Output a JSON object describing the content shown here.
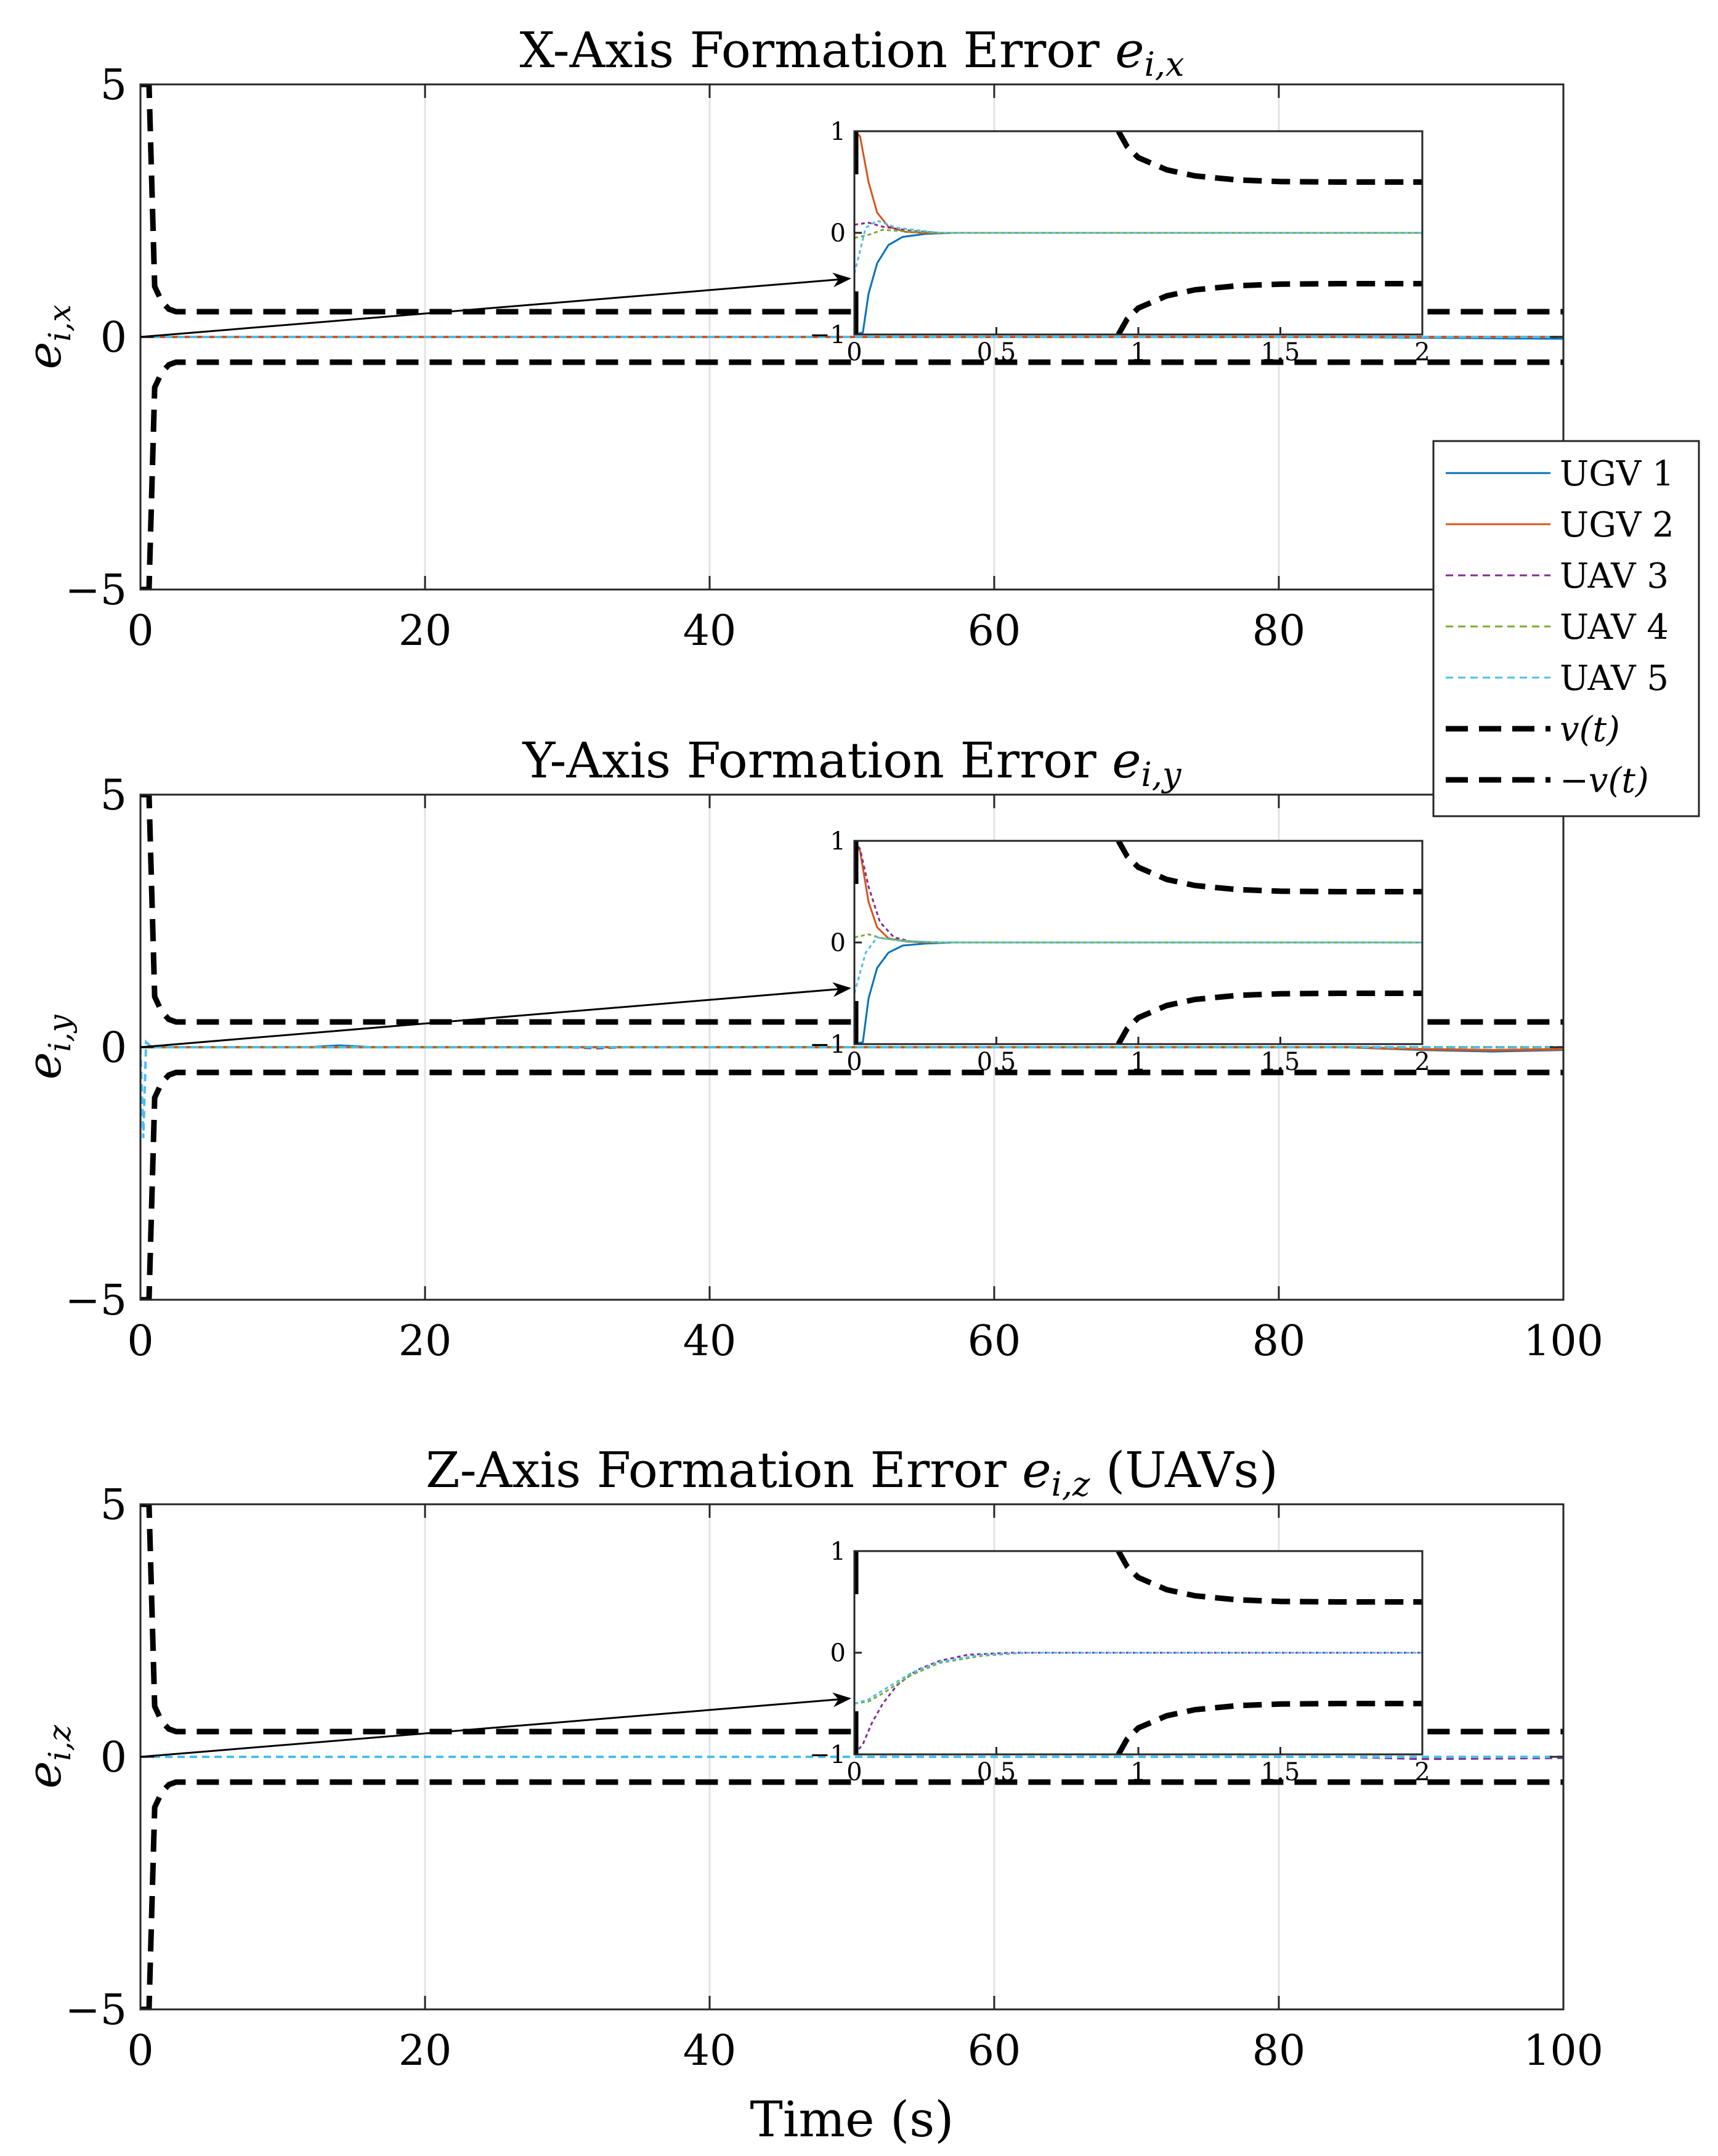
{
  "legend": {
    "entries": [
      {
        "label": "UGV 1",
        "color": "#0072BD",
        "dash": "solid"
      },
      {
        "label": "UGV 2",
        "color": "#D95319",
        "dash": "solid"
      },
      {
        "label": "UAV 3",
        "color": "#7E2F8E",
        "dash": "dotted"
      },
      {
        "label": "UAV 4",
        "color": "#77AC30",
        "dash": "dotted"
      },
      {
        "label": "UAV 5",
        "color": "#4DBEEE",
        "dash": "dotted"
      },
      {
        "label": "v(t)",
        "color": "#000000",
        "dash": "dashed"
      },
      {
        "label": "−v(t)",
        "color": "#000000",
        "dash": "dashed"
      }
    ]
  },
  "chart_data": [
    {
      "type": "line",
      "title": "X-Axis Formation Error ",
      "title_math": "e",
      "title_sub": "i,x",
      "title_suffix": "",
      "ylabel": "e",
      "ylabel_sub": "i,x",
      "xlabel": "",
      "xlim": [
        0,
        100
      ],
      "ylim": [
        -5,
        5
      ],
      "xticks": [
        "0",
        "20",
        "40",
        "60",
        "80"
      ],
      "yticks": [
        "−5",
        "0",
        "5"
      ],
      "grid": true,
      "bound_v": {
        "t": [
          0,
          0.3,
          0.6,
          1.0,
          1.5,
          2.0,
          2.5,
          100
        ],
        "v": [
          5,
          5,
          5,
          1.0,
          0.7,
          0.55,
          0.5,
          0.5
        ]
      },
      "series": [
        {
          "name": "UGV 1",
          "x": [
            0,
            0.5,
            85,
            100
          ],
          "y": [
            0,
            0,
            0,
            -0.03
          ]
        },
        {
          "name": "UGV 2",
          "x": [
            0,
            100
          ],
          "y": [
            0,
            0
          ]
        },
        {
          "name": "UAV 3",
          "x": [
            0,
            100
          ],
          "y": [
            0,
            0
          ]
        },
        {
          "name": "UAV 4",
          "x": [
            0,
            100
          ],
          "y": [
            0,
            0
          ]
        },
        {
          "name": "UAV 5",
          "x": [
            0,
            100
          ],
          "y": [
            0,
            0
          ]
        }
      ],
      "inset": {
        "xlim": [
          0,
          2
        ],
        "ylim": [
          -1,
          1
        ],
        "xticks": [
          "0",
          "0.5",
          "1",
          "1.5",
          "2"
        ],
        "yticks": [
          "−1",
          "0",
          "1"
        ],
        "bound_v": {
          "t": [
            0.93,
            0.96,
            1.0,
            1.1,
            1.2,
            1.35,
            1.5,
            1.7,
            2.0
          ],
          "v": [
            1.0,
            0.85,
            0.74,
            0.62,
            0.56,
            0.52,
            0.505,
            0.5,
            0.5
          ]
        },
        "series": [
          {
            "name": "UGV 1",
            "x": [
              0,
              0.03,
              0.05,
              0.08,
              0.12,
              0.17,
              0.25,
              0.35,
              2
            ],
            "y": [
              -1,
              -0.98,
              -0.6,
              -0.3,
              -0.12,
              -0.04,
              -0.01,
              0,
              0
            ]
          },
          {
            "name": "UGV 2",
            "x": [
              0,
              0.02,
              0.05,
              0.08,
              0.12,
              0.18,
              0.25,
              2
            ],
            "y": [
              1,
              0.95,
              0.5,
              0.2,
              0.06,
              0.01,
              0,
              0
            ]
          },
          {
            "name": "UAV 3",
            "x": [
              0,
              0.05,
              0.1,
              0.2,
              0.3,
              2
            ],
            "y": [
              0.08,
              0.1,
              0.06,
              0.02,
              0,
              0
            ]
          },
          {
            "name": "UAV 4",
            "x": [
              0,
              0.05,
              0.1,
              0.2,
              0.3,
              2
            ],
            "y": [
              -0.05,
              -0.02,
              0.03,
              0.01,
              0,
              0
            ]
          },
          {
            "name": "UAV 5",
            "x": [
              0,
              0.04,
              0.08,
              0.15,
              0.3,
              2
            ],
            "y": [
              -0.4,
              0.05,
              0.12,
              0.05,
              0,
              0
            ]
          }
        ]
      }
    },
    {
      "type": "line",
      "title": "Y-Axis Formation Error ",
      "title_math": "e",
      "title_sub": "i,y",
      "title_suffix": "",
      "ylabel": "e",
      "ylabel_sub": "i,y",
      "xlabel": "",
      "xlim": [
        0,
        100
      ],
      "ylim": [
        -5,
        5
      ],
      "xticks": [
        "0",
        "20",
        "40",
        "60",
        "80",
        "100"
      ],
      "yticks": [
        "−5",
        "0",
        "5"
      ],
      "grid": true,
      "bound_v": {
        "t": [
          0,
          0.3,
          0.6,
          1.0,
          1.5,
          2.0,
          2.5,
          100
        ],
        "v": [
          5,
          5,
          5,
          1.0,
          0.7,
          0.55,
          0.5,
          0.5
        ]
      },
      "series": [
        {
          "name": "UGV 1",
          "x": [
            0,
            12,
            14,
            16,
            85,
            90,
            95,
            100
          ],
          "y": [
            0,
            0,
            0.03,
            0,
            0,
            -0.05,
            -0.08,
            -0.05
          ]
        },
        {
          "name": "UGV 2",
          "x": [
            0,
            85,
            90,
            95,
            100
          ],
          "y": [
            0,
            0,
            -0.04,
            -0.06,
            -0.04
          ]
        },
        {
          "name": "UAV 3",
          "x": [
            0,
            30,
            32,
            34,
            100
          ],
          "y": [
            0,
            0,
            -0.02,
            0,
            0
          ]
        },
        {
          "name": "UAV 4",
          "x": [
            0,
            100
          ],
          "y": [
            0,
            0
          ]
        },
        {
          "name": "UAV 5",
          "x": [
            0,
            0.2,
            0.4,
            0.8,
            100
          ],
          "y": [
            0,
            -1.8,
            0.1,
            0,
            0
          ]
        }
      ],
      "inset": {
        "xlim": [
          0,
          2
        ],
        "ylim": [
          -1,
          1
        ],
        "xticks": [
          "0",
          "0.5",
          "1",
          "1.5",
          "2"
        ],
        "yticks": [
          "−1",
          "0",
          "1"
        ],
        "bound_v": {
          "t": [
            0.93,
            0.96,
            1.0,
            1.1,
            1.2,
            1.35,
            1.5,
            1.7,
            2.0
          ],
          "v": [
            1.0,
            0.85,
            0.74,
            0.62,
            0.56,
            0.52,
            0.505,
            0.5,
            0.5
          ]
        },
        "series": [
          {
            "name": "UGV 1",
            "x": [
              0,
              0.03,
              0.05,
              0.08,
              0.12,
              0.17,
              0.25,
              0.35,
              2
            ],
            "y": [
              -1,
              -0.98,
              -0.55,
              -0.25,
              -0.1,
              -0.03,
              -0.01,
              0,
              0
            ]
          },
          {
            "name": "UGV 2",
            "x": [
              0,
              0.02,
              0.05,
              0.08,
              0.12,
              0.18,
              0.25,
              2
            ],
            "y": [
              1,
              0.9,
              0.4,
              0.15,
              0.04,
              0.01,
              0,
              0
            ]
          },
          {
            "name": "UAV 3",
            "x": [
              0,
              0.02,
              0.05,
              0.09,
              0.14,
              0.2,
              0.3,
              2
            ],
            "y": [
              1,
              0.92,
              0.55,
              0.2,
              0.05,
              0.01,
              0,
              0
            ]
          },
          {
            "name": "UAV 4",
            "x": [
              0,
              0.05,
              0.1,
              0.2,
              0.3,
              2
            ],
            "y": [
              0.05,
              0.08,
              0.04,
              0.01,
              0,
              0
            ]
          },
          {
            "name": "UAV 5",
            "x": [
              0,
              0.04,
              0.08,
              0.15,
              0.3,
              2
            ],
            "y": [
              -0.5,
              -0.1,
              0.05,
              0.02,
              0,
              0
            ]
          }
        ]
      }
    },
    {
      "type": "line",
      "title": "Z-Axis Formation Error ",
      "title_math": "e",
      "title_sub": "i,z",
      "title_suffix": " (UAVs)",
      "ylabel": "e",
      "ylabel_sub": "i,z",
      "xlabel": "Time (s)",
      "xlim": [
        0,
        100
      ],
      "ylim": [
        -5,
        5
      ],
      "xticks": [
        "0",
        "20",
        "40",
        "60",
        "80",
        "100"
      ],
      "yticks": [
        "−5",
        "0",
        "5"
      ],
      "grid": true,
      "bound_v": {
        "t": [
          0,
          0.3,
          0.6,
          1.0,
          1.5,
          2.0,
          2.5,
          100
        ],
        "v": [
          5,
          5,
          5,
          1.0,
          0.7,
          0.55,
          0.5,
          0.5
        ]
      },
      "series": [
        {
          "name": "UAV 3",
          "x": [
            0,
            85,
            90,
            95,
            100
          ],
          "y": [
            0,
            0,
            -0.04,
            -0.03,
            -0.02
          ]
        },
        {
          "name": "UAV 4",
          "x": [
            0,
            100
          ],
          "y": [
            0,
            0
          ]
        },
        {
          "name": "UAV 5",
          "x": [
            0,
            100
          ],
          "y": [
            0,
            0
          ]
        }
      ],
      "inset": {
        "xlim": [
          0,
          2
        ],
        "ylim": [
          -1,
          1
        ],
        "xticks": [
          "0",
          "0.5",
          "1",
          "1.5",
          "2"
        ],
        "yticks": [
          "−1",
          "0",
          "1"
        ],
        "bound_v": {
          "t": [
            0.93,
            0.96,
            1.0,
            1.1,
            1.2,
            1.35,
            1.5,
            1.7,
            2.0
          ],
          "v": [
            1.0,
            0.85,
            0.74,
            0.62,
            0.56,
            0.52,
            0.505,
            0.5,
            0.5
          ]
        },
        "series": [
          {
            "name": "UAV 3",
            "x": [
              0,
              0.03,
              0.06,
              0.1,
              0.15,
              0.22,
              0.3,
              0.4,
              0.55,
              2
            ],
            "y": [
              -1,
              -0.9,
              -0.7,
              -0.5,
              -0.32,
              -0.17,
              -0.08,
              -0.02,
              0,
              0
            ]
          },
          {
            "name": "UAV 4",
            "x": [
              0,
              0.05,
              0.1,
              0.2,
              0.3,
              0.45,
              0.6,
              2
            ],
            "y": [
              -0.5,
              -0.48,
              -0.4,
              -0.22,
              -0.1,
              -0.03,
              0,
              0
            ]
          },
          {
            "name": "UAV 5",
            "x": [
              0,
              0.05,
              0.1,
              0.2,
              0.3,
              0.45,
              0.6,
              2
            ],
            "y": [
              -0.5,
              -0.46,
              -0.37,
              -0.2,
              -0.09,
              -0.02,
              0,
              0
            ]
          }
        ]
      }
    }
  ]
}
